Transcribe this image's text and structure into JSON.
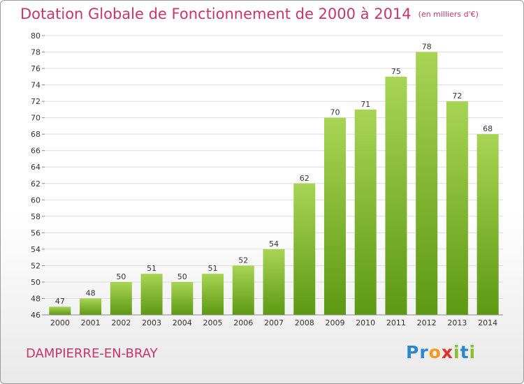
{
  "title": "Dotation Globale de Fonctionnement de 2000 à 2014",
  "subtitle": "(en milliers d'€)",
  "commune": "DAMPIERRE-EN-BRAY",
  "logo": {
    "text": "Proxiti",
    "letters": [
      {
        "ch": "P",
        "color": "#2f86c8"
      },
      {
        "ch": "r",
        "color": "#2f86c8"
      },
      {
        "ch": "o",
        "color": "#f39a1e"
      },
      {
        "ch": "x",
        "color": "#e0302a"
      },
      {
        "ch": "i",
        "color": "#8bbf2a"
      },
      {
        "ch": "t",
        "color": "#2f86c8"
      },
      {
        "ch": "i",
        "color": "#8bbf2a"
      }
    ]
  },
  "colors": {
    "title": "#c7356b",
    "bar_top": "#a8d454",
    "bar_bottom": "#5d9912",
    "grid": "#dcdcdc",
    "axis": "#888888"
  },
  "chart_data": {
    "type": "bar",
    "title": "Dotation Globale de Fonctionnement de 2000 à 2014",
    "subtitle": "(en milliers d'€)",
    "categories": [
      "2000",
      "2001",
      "2002",
      "2003",
      "2004",
      "2005",
      "2006",
      "2007",
      "2008",
      "2009",
      "2010",
      "2011",
      "2012",
      "2013",
      "2014"
    ],
    "values": [
      47,
      48,
      50,
      51,
      50,
      51,
      52,
      54,
      62,
      70,
      71,
      75,
      78,
      72,
      68
    ],
    "xlabel": "",
    "ylabel": "",
    "ylim": [
      46,
      80
    ],
    "yticks": [
      46,
      48,
      50,
      52,
      54,
      56,
      58,
      60,
      62,
      64,
      66,
      68,
      70,
      72,
      74,
      76,
      78,
      80
    ],
    "grid": true,
    "legend": "none",
    "data_labels": true
  }
}
